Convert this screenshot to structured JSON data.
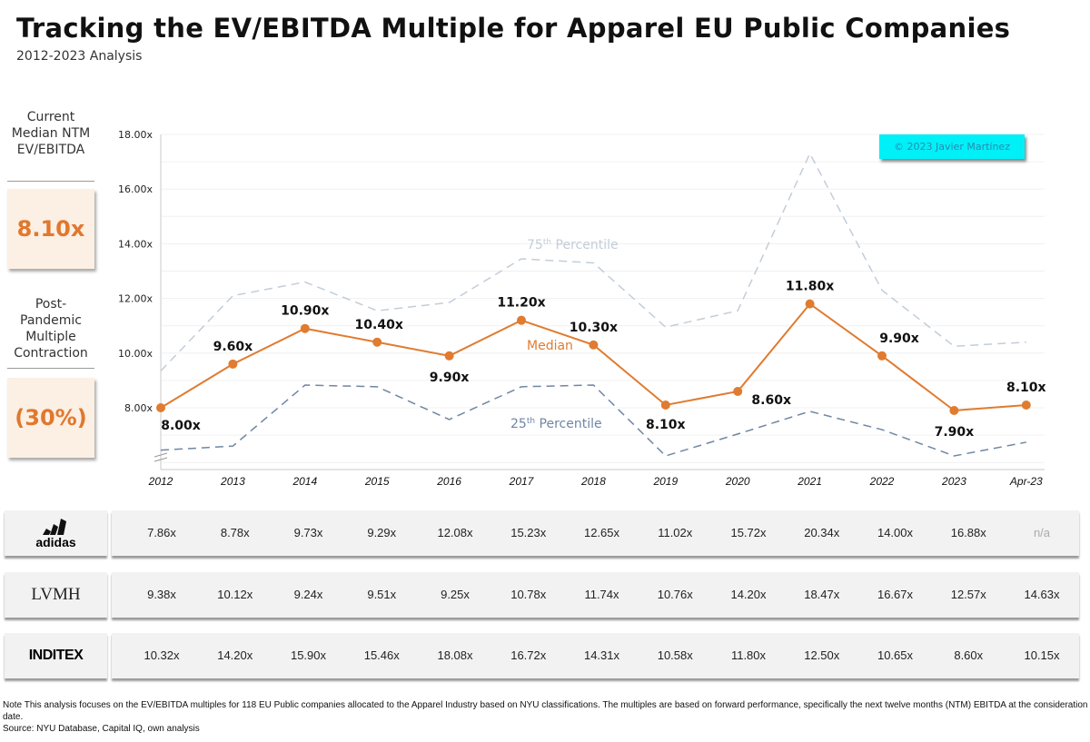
{
  "header": {
    "title": "Tracking the EV/EBITDA Multiple for Apparel EU Public Companies",
    "subtitle": "2012-2023 Analysis"
  },
  "kpis": [
    {
      "label": "Current Median NTM EV/EBITDA",
      "value": "8.10x"
    },
    {
      "label": "Post-Pandemic Multiple Contraction",
      "value": "(30%)"
    }
  ],
  "watermark": "© 2023 Javier Martínez",
  "colors": {
    "median": "#e07b30",
    "p75": "#c3cdd8",
    "p25": "#6f86a3",
    "kpi_value": "#e0782e",
    "watermark_bg": "#00f0f8"
  },
  "chart_data": {
    "type": "line",
    "title": "Tracking the EV/EBITDA Multiple for Apparel EU Public Companies",
    "subtitle": "2012-2023 Analysis",
    "categories": [
      "2012",
      "2013",
      "2014",
      "2015",
      "2016",
      "2017",
      "2018",
      "2019",
      "2020",
      "2021",
      "2022",
      "2023",
      "Apr-23"
    ],
    "ylim": [
      5.75,
      18
    ],
    "yticks": [
      "8.00x",
      "10.00x",
      "12.00x",
      "14.00x",
      "16.00x",
      "18.00x"
    ],
    "ytick_values": [
      8,
      10,
      12,
      14,
      16,
      18
    ],
    "grid": true,
    "series": [
      {
        "name": "75th Percentile",
        "style": "dashed",
        "values": [
          9.35,
          12.1,
          12.6,
          11.55,
          11.85,
          13.45,
          13.3,
          10.95,
          11.55,
          17.3,
          12.3,
          10.25,
          10.4
        ]
      },
      {
        "name": "Median",
        "style": "solid-markers",
        "values": [
          8.0,
          9.6,
          10.9,
          10.4,
          9.9,
          11.2,
          10.3,
          8.1,
          8.6,
          11.8,
          9.9,
          7.9,
          8.1
        ],
        "labels": [
          "8.00x",
          "9.60x",
          "10.90x",
          "10.40x",
          "9.90x",
          "11.20x",
          "10.30x",
          "8.10x",
          "8.60x",
          "11.80x",
          "9.90x",
          "7.90x",
          "8.10x"
        ]
      },
      {
        "name": "25th Percentile",
        "style": "dashed",
        "values": [
          6.45,
          6.6,
          8.83,
          8.77,
          7.57,
          8.77,
          8.83,
          6.24,
          7.04,
          7.87,
          7.2,
          6.24,
          6.74
        ]
      }
    ],
    "series_labels": {
      "p75_main": "75",
      "p75_sup": "th",
      "p75_rest": " Percentile",
      "median": "Median",
      "p25_main": "25",
      "p25_sup": "th",
      "p25_rest": " Percentile"
    }
  },
  "table": {
    "rows": [
      {
        "company": "adidas",
        "values": [
          "7.86x",
          "8.78x",
          "9.73x",
          "9.29x",
          "12.08x",
          "15.23x",
          "12.65x",
          "11.02x",
          "15.72x",
          "20.34x",
          "14.00x",
          "16.88x",
          "n/a"
        ]
      },
      {
        "company": "LVMH",
        "values": [
          "9.38x",
          "10.12x",
          "9.24x",
          "9.51x",
          "9.25x",
          "10.78x",
          "11.74x",
          "10.76x",
          "14.20x",
          "18.47x",
          "16.67x",
          "12.57x",
          "14.63x"
        ]
      },
      {
        "company": "INDITEX",
        "values": [
          "10.32x",
          "14.20x",
          "15.90x",
          "15.46x",
          "18.08x",
          "16.72x",
          "14.31x",
          "10.58x",
          "11.80x",
          "12.50x",
          "10.65x",
          "8.60x",
          "10.15x"
        ]
      }
    ]
  },
  "footer": {
    "note": "Note This analysis focuses on the EV/EBITDA multiples for 118 EU Public companies allocated to the Apparel Industry based on NYU classifications. The multiples are based on forward performance, specifically the next twelve months (NTM) EBITDA at the consideration date.",
    "source": "Source: NYU Database, Capital IQ, own analysis"
  }
}
